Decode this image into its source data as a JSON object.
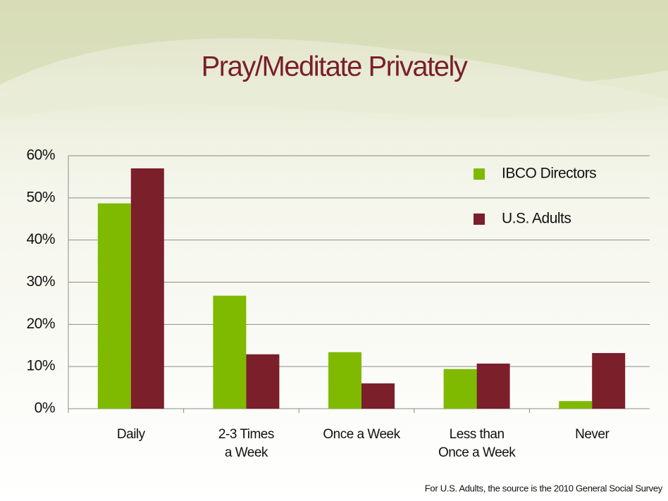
{
  "chart_data": {
    "type": "bar",
    "title": "Pray/Meditate Privately",
    "categories": [
      "Daily",
      "2-3 Times\na Week",
      "Once a Week",
      "Less than\nOnce a Week",
      "Never"
    ],
    "series": [
      {
        "name": "IBCO Directors",
        "color": "#7fba00",
        "values": [
          48.7,
          26.8,
          13.4,
          9.4,
          1.8
        ]
      },
      {
        "name": "U.S. Adults",
        "color": "#7b1f2b",
        "values": [
          57.0,
          12.9,
          6.0,
          10.7,
          13.2
        ]
      }
    ],
    "ylim": [
      0,
      60
    ],
    "yticks": [
      {
        "value": 0,
        "label": "0%"
      },
      {
        "value": 10,
        "label": "10%"
      },
      {
        "value": 20,
        "label": "20%"
      },
      {
        "value": 30,
        "label": "30%"
      },
      {
        "value": 40,
        "label": "40%"
      },
      {
        "value": 50,
        "label": "50%"
      },
      {
        "value": 60,
        "label": "60%"
      }
    ],
    "grid": true,
    "legend": "upper right",
    "annotations": [
      "For U.S. Adults, the source is the 2010 General Social Survey"
    ]
  }
}
